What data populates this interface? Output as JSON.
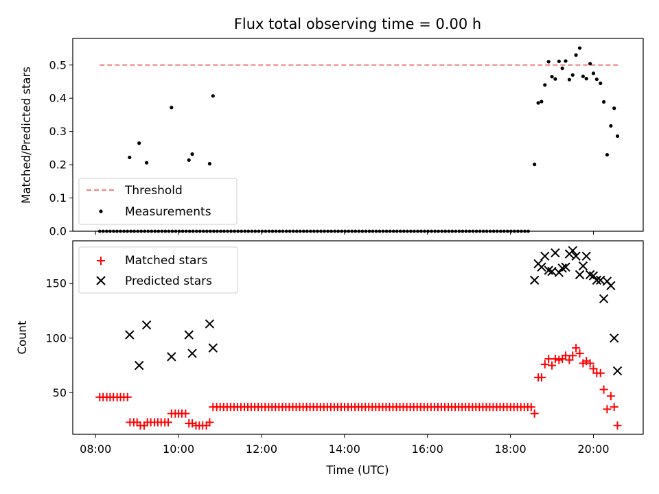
{
  "chart_data": [
    {
      "type": "scatter",
      "title": "Flux total observing time = 0.00 h",
      "xlabel": "",
      "ylabel": "Matched/Predicted stars",
      "xlim": [
        7.45,
        21.2
      ],
      "ylim": [
        0.0,
        0.58
      ],
      "yticks": [
        0.0,
        0.1,
        0.2,
        0.3,
        0.4,
        0.5
      ],
      "ytick_labels": [
        "0.0",
        "0.1",
        "0.2",
        "0.3",
        "0.4",
        "0.5"
      ],
      "xticks": [
        8,
        10,
        12,
        14,
        16,
        18,
        20
      ],
      "grid": false,
      "legend": {
        "placement": "lower-left",
        "entries": [
          "Threshold",
          "Measurements"
        ]
      },
      "threshold": {
        "name": "Threshold",
        "y": 0.5,
        "x_range": [
          8.1,
          20.6
        ],
        "color": "#f08080",
        "style": "dashed"
      },
      "measurements": {
        "name": "Measurements",
        "color": "#000000",
        "nonzero": [
          [
            8.82,
            0.222
          ],
          [
            9.05,
            0.265
          ],
          [
            9.23,
            0.206
          ],
          [
            9.83,
            0.372
          ],
          [
            10.25,
            0.214
          ],
          [
            10.33,
            0.232
          ],
          [
            10.75,
            0.203
          ],
          [
            10.83,
            0.407
          ],
          [
            18.58,
            0.201
          ],
          [
            18.67,
            0.386
          ],
          [
            18.75,
            0.39
          ],
          [
            18.83,
            0.44
          ],
          [
            18.92,
            0.51
          ],
          [
            19.0,
            0.465
          ],
          [
            19.08,
            0.458
          ],
          [
            19.17,
            0.511
          ],
          [
            19.25,
            0.49
          ],
          [
            19.33,
            0.512
          ],
          [
            19.42,
            0.456
          ],
          [
            19.5,
            0.47
          ],
          [
            19.58,
            0.53
          ],
          [
            19.67,
            0.551
          ],
          [
            19.75,
            0.466
          ],
          [
            19.83,
            0.459
          ],
          [
            19.92,
            0.504
          ],
          [
            20.0,
            0.475
          ],
          [
            20.08,
            0.457
          ],
          [
            20.17,
            0.445
          ],
          [
            20.25,
            0.389
          ],
          [
            20.33,
            0.23
          ],
          [
            20.42,
            0.317
          ],
          [
            20.5,
            0.37
          ],
          [
            20.58,
            0.286
          ]
        ],
        "zero_x_start": 8.1,
        "zero_x_end": 18.5,
        "zero_x_step": 0.0833,
        "zero_y": 0.0
      }
    },
    {
      "type": "scatter",
      "title": "",
      "xlabel": "Time (UTC)",
      "ylabel": "Count",
      "xlim": [
        7.45,
        21.2
      ],
      "ylim": [
        12,
        189
      ],
      "yticks": [
        50,
        100,
        150
      ],
      "ytick_labels": [
        "50",
        "100",
        "150"
      ],
      "xticks": [
        8,
        10,
        12,
        14,
        16,
        18,
        20
      ],
      "xtick_labels": [
        "08:00",
        "10:00",
        "12:00",
        "14:00",
        "16:00",
        "18:00",
        "20:00"
      ],
      "grid": false,
      "legend": {
        "placement": "top-left",
        "entries": [
          "Matched stars",
          "Predicted stars"
        ]
      },
      "matched": {
        "name": "Matched stars",
        "color": "#ff0000",
        "marker": "plus",
        "points": [
          [
            8.1,
            46
          ],
          [
            8.18,
            46
          ],
          [
            8.27,
            46
          ],
          [
            8.35,
            46
          ],
          [
            8.43,
            46
          ],
          [
            8.52,
            46
          ],
          [
            8.6,
            46
          ],
          [
            8.68,
            46
          ],
          [
            8.77,
            46
          ],
          [
            8.83,
            23
          ],
          [
            8.92,
            23
          ],
          [
            9.0,
            23
          ],
          [
            9.08,
            20
          ],
          [
            9.17,
            20
          ],
          [
            9.25,
            23
          ],
          [
            9.33,
            23
          ],
          [
            9.42,
            23
          ],
          [
            9.5,
            23
          ],
          [
            9.58,
            23
          ],
          [
            9.67,
            23
          ],
          [
            9.75,
            23
          ],
          [
            9.83,
            31
          ],
          [
            9.92,
            31
          ],
          [
            10.0,
            31
          ],
          [
            10.08,
            31
          ],
          [
            10.17,
            31
          ],
          [
            10.25,
            22
          ],
          [
            10.33,
            22
          ],
          [
            10.42,
            20
          ],
          [
            10.5,
            20
          ],
          [
            10.58,
            20
          ],
          [
            10.67,
            20
          ],
          [
            10.75,
            23
          ],
          [
            10.83,
            37
          ],
          [
            18.5,
            37
          ],
          [
            18.58,
            31
          ],
          [
            18.67,
            64
          ],
          [
            18.75,
            64
          ],
          [
            18.83,
            76
          ],
          [
            18.92,
            81
          ],
          [
            19.0,
            75
          ],
          [
            19.08,
            81
          ],
          [
            19.17,
            80
          ],
          [
            19.25,
            81
          ],
          [
            19.33,
            84
          ],
          [
            19.42,
            80
          ],
          [
            19.5,
            84
          ],
          [
            19.58,
            91
          ],
          [
            19.67,
            86
          ],
          [
            19.75,
            77
          ],
          [
            19.83,
            79
          ],
          [
            19.92,
            77
          ],
          [
            20.0,
            72
          ],
          [
            20.08,
            68
          ],
          [
            20.17,
            68
          ],
          [
            20.25,
            53
          ],
          [
            20.33,
            35
          ],
          [
            20.42,
            47
          ],
          [
            20.5,
            37
          ],
          [
            20.58,
            20
          ]
        ],
        "constant_run": {
          "x_start": 10.92,
          "x_end": 18.42,
          "x_step": 0.0833,
          "y": 37
        }
      },
      "predicted": {
        "name": "Predicted stars",
        "color": "#000000",
        "marker": "x",
        "points": [
          [
            8.82,
            103
          ],
          [
            9.05,
            75
          ],
          [
            9.23,
            112
          ],
          [
            9.83,
            83
          ],
          [
            10.25,
            103
          ],
          [
            10.33,
            86
          ],
          [
            10.75,
            113
          ],
          [
            10.83,
            91
          ],
          [
            18.58,
            153
          ],
          [
            18.67,
            168
          ],
          [
            18.75,
            165
          ],
          [
            18.83,
            175
          ],
          [
            18.92,
            162
          ],
          [
            19.0,
            161
          ],
          [
            19.08,
            178
          ],
          [
            19.17,
            160
          ],
          [
            19.25,
            164
          ],
          [
            19.33,
            165
          ],
          [
            19.42,
            177
          ],
          [
            19.5,
            180
          ],
          [
            19.58,
            175
          ],
          [
            19.67,
            158
          ],
          [
            19.75,
            166
          ],
          [
            19.83,
            175
          ],
          [
            19.92,
            158
          ],
          [
            20.0,
            157
          ],
          [
            20.08,
            153
          ],
          [
            20.17,
            153
          ],
          [
            20.25,
            136
          ],
          [
            20.33,
            152
          ],
          [
            20.42,
            148
          ],
          [
            20.5,
            100
          ],
          [
            20.58,
            70
          ]
        ]
      }
    }
  ]
}
